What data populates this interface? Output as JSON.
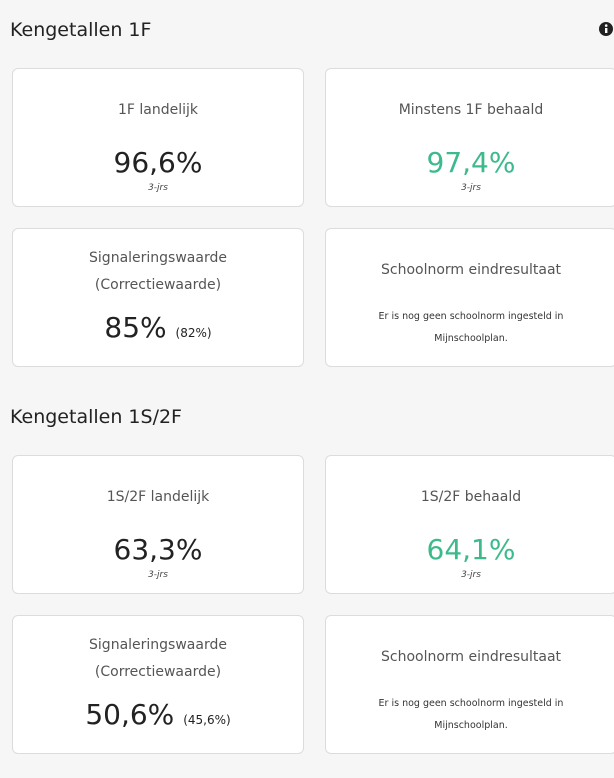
{
  "sections": [
    {
      "title": "Kengetallen 1F",
      "cards": [
        {
          "label": [
            "1F landelijk"
          ],
          "value": "96,6%",
          "note": "3-jrs"
        },
        {
          "label": [
            "Minstens 1F behaald"
          ],
          "value": "97,4%",
          "note": "3-jrs",
          "color": "#3dba8c"
        },
        {
          "label": [
            "Signaleringswaarde",
            "(Correctiewaarde)"
          ],
          "value": "85%",
          "extra": "(82%)"
        },
        {
          "label": [
            "Schoolnorm eindresultaat"
          ],
          "message": "Er is nog geen schoolnorm ingesteld in Mijnschoolplan."
        }
      ]
    },
    {
      "title": "Kengetallen 1S/2F",
      "cards": [
        {
          "label": [
            "1S/2F landelijk"
          ],
          "value": "63,3%",
          "note": "3-jrs"
        },
        {
          "label": [
            "1S/2F behaald"
          ],
          "value": "64,1%",
          "note": "3-jrs",
          "color": "#3dba8c"
        },
        {
          "label": [
            "Signaleringswaarde",
            "(Correctiewaarde)"
          ],
          "value": "50,6%",
          "extra": "(45,6%)"
        },
        {
          "label": [
            "Schoolnorm eindresultaat"
          ],
          "message": "Er is nog geen schoolnorm ingesteld in Mijnschoolplan."
        }
      ]
    }
  ]
}
